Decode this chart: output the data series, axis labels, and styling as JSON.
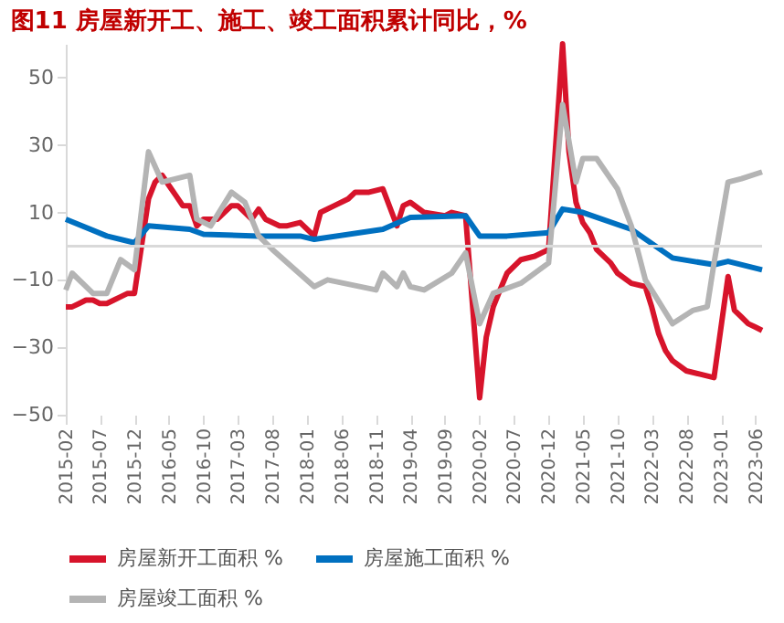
{
  "chart_data": {
    "type": "line",
    "title": "图11 房屋新开工、施工、竣工面积累计同比，%",
    "ylim": [
      -50,
      60
    ],
    "yticks": [
      -50,
      -30,
      -10,
      10,
      30,
      50
    ],
    "xlim": [
      "2015-02",
      "2023-07"
    ],
    "xticks": [
      "2015-02",
      "2015-07",
      "2015-12",
      "2016-05",
      "2016-10",
      "2017-03",
      "2017-08",
      "2018-01",
      "2018-06",
      "2018-11",
      "2019-04",
      "2019-09",
      "2020-02",
      "2020-07",
      "2020-12",
      "2021-05",
      "2021-10",
      "2022-03",
      "2022-08",
      "2023-01",
      "2023-06"
    ],
    "grid": false,
    "legend": "bottom",
    "marker": "none",
    "line_style": "solid",
    "ref_lines": [
      {
        "axis": "y",
        "value": 0,
        "color": "#d9d9d9"
      }
    ],
    "series": [
      {
        "name": "房屋新开工面积 %",
        "color": "#d7142b",
        "x": [
          "2015-02",
          "2015-03",
          "2015-04",
          "2015-05",
          "2015-06",
          "2015-07",
          "2015-08",
          "2015-09",
          "2015-10",
          "2015-11",
          "2015-12",
          "2016-02",
          "2016-03",
          "2016-04",
          "2016-05",
          "2016-06",
          "2016-07",
          "2016-08",
          "2016-09",
          "2016-10",
          "2016-12",
          "2017-02",
          "2017-03",
          "2017-05",
          "2017-06",
          "2017-07",
          "2017-09",
          "2017-10",
          "2017-12",
          "2018-02",
          "2018-03",
          "2018-05",
          "2018-07",
          "2018-08",
          "2018-10",
          "2018-12",
          "2019-02",
          "2019-03",
          "2019-04",
          "2019-06",
          "2019-09",
          "2019-10",
          "2019-12",
          "2020-02",
          "2020-03",
          "2020-04",
          "2020-05",
          "2020-06",
          "2020-08",
          "2020-10",
          "2020-12",
          "2021-02",
          "2021-03",
          "2021-04",
          "2021-05",
          "2021-06",
          "2021-07",
          "2021-09",
          "2021-10",
          "2021-12",
          "2022-02",
          "2022-03",
          "2022-04",
          "2022-05",
          "2022-06",
          "2022-08",
          "2022-10",
          "2022-12",
          "2023-02",
          "2023-03",
          "2023-04",
          "2023-05",
          "2023-06",
          "2023-07"
        ],
        "values": [
          -18,
          -18,
          -17,
          -16,
          -16,
          -17,
          -17,
          -16,
          -15,
          -14,
          -14,
          14,
          19,
          21,
          18,
          15,
          12,
          12,
          6,
          8,
          8,
          12,
          12,
          8,
          11,
          8,
          6,
          6,
          7,
          3,
          10,
          12,
          14,
          16,
          16,
          17,
          6,
          12,
          13,
          10,
          9,
          10,
          9,
          -45,
          -27,
          -18,
          -13,
          -8,
          -4,
          -3,
          -1,
          60,
          28,
          13,
          7,
          4,
          -1,
          -5,
          -8,
          -11,
          -12,
          -18,
          -26,
          -31,
          -34,
          -37,
          -38,
          -39,
          -9,
          -19,
          -21,
          -23,
          -24,
          -25
        ]
      },
      {
        "name": "房屋施工面积 %",
        "color": "#0070c0",
        "x": [
          "2015-02",
          "2015-08",
          "2015-12",
          "2016-02",
          "2016-08",
          "2016-10",
          "2017-06",
          "2017-12",
          "2018-02",
          "2018-12",
          "2019-04",
          "2019-12",
          "2020-02",
          "2020-06",
          "2020-12",
          "2021-02",
          "2021-05",
          "2021-12",
          "2022-06",
          "2022-12",
          "2023-02",
          "2023-07"
        ],
        "values": [
          8,
          3,
          1,
          6,
          5,
          3.5,
          3,
          3,
          2,
          5,
          8.5,
          9,
          3,
          3,
          4,
          11,
          10,
          5,
          -3.5,
          -5.5,
          -4.5,
          -7
        ]
      },
      {
        "name": "房屋竣工面积 %",
        "color": "#b4b4b4",
        "x": [
          "2015-02",
          "2015-03",
          "2015-06",
          "2015-08",
          "2015-10",
          "2015-12",
          "2016-02",
          "2016-04",
          "2016-06",
          "2016-08",
          "2016-09",
          "2016-11",
          "2017-02",
          "2017-04",
          "2017-06",
          "2017-08",
          "2018-02",
          "2018-04",
          "2018-11",
          "2018-12",
          "2019-02",
          "2019-03",
          "2019-04",
          "2019-06",
          "2019-10",
          "2019-12",
          "2020-02",
          "2020-04",
          "2020-08",
          "2020-12",
          "2021-02",
          "2021-04",
          "2021-05",
          "2021-07",
          "2021-10",
          "2021-12",
          "2022-02",
          "2022-06",
          "2022-09",
          "2022-11",
          "2022-12",
          "2023-02",
          "2023-04",
          "2023-07"
        ],
        "values": [
          -13,
          -8,
          -14,
          -14,
          -4,
          -7,
          28,
          19,
          20,
          21,
          8,
          6,
          16,
          13,
          3,
          -1,
          -12,
          -10,
          -13,
          -8,
          -12,
          -8,
          -12,
          -13,
          -8,
          -2,
          -23,
          -14,
          -11,
          -5,
          42,
          19,
          26,
          26,
          17,
          6,
          -10,
          -23,
          -19,
          -18,
          -5,
          19,
          20,
          22
        ]
      }
    ]
  }
}
